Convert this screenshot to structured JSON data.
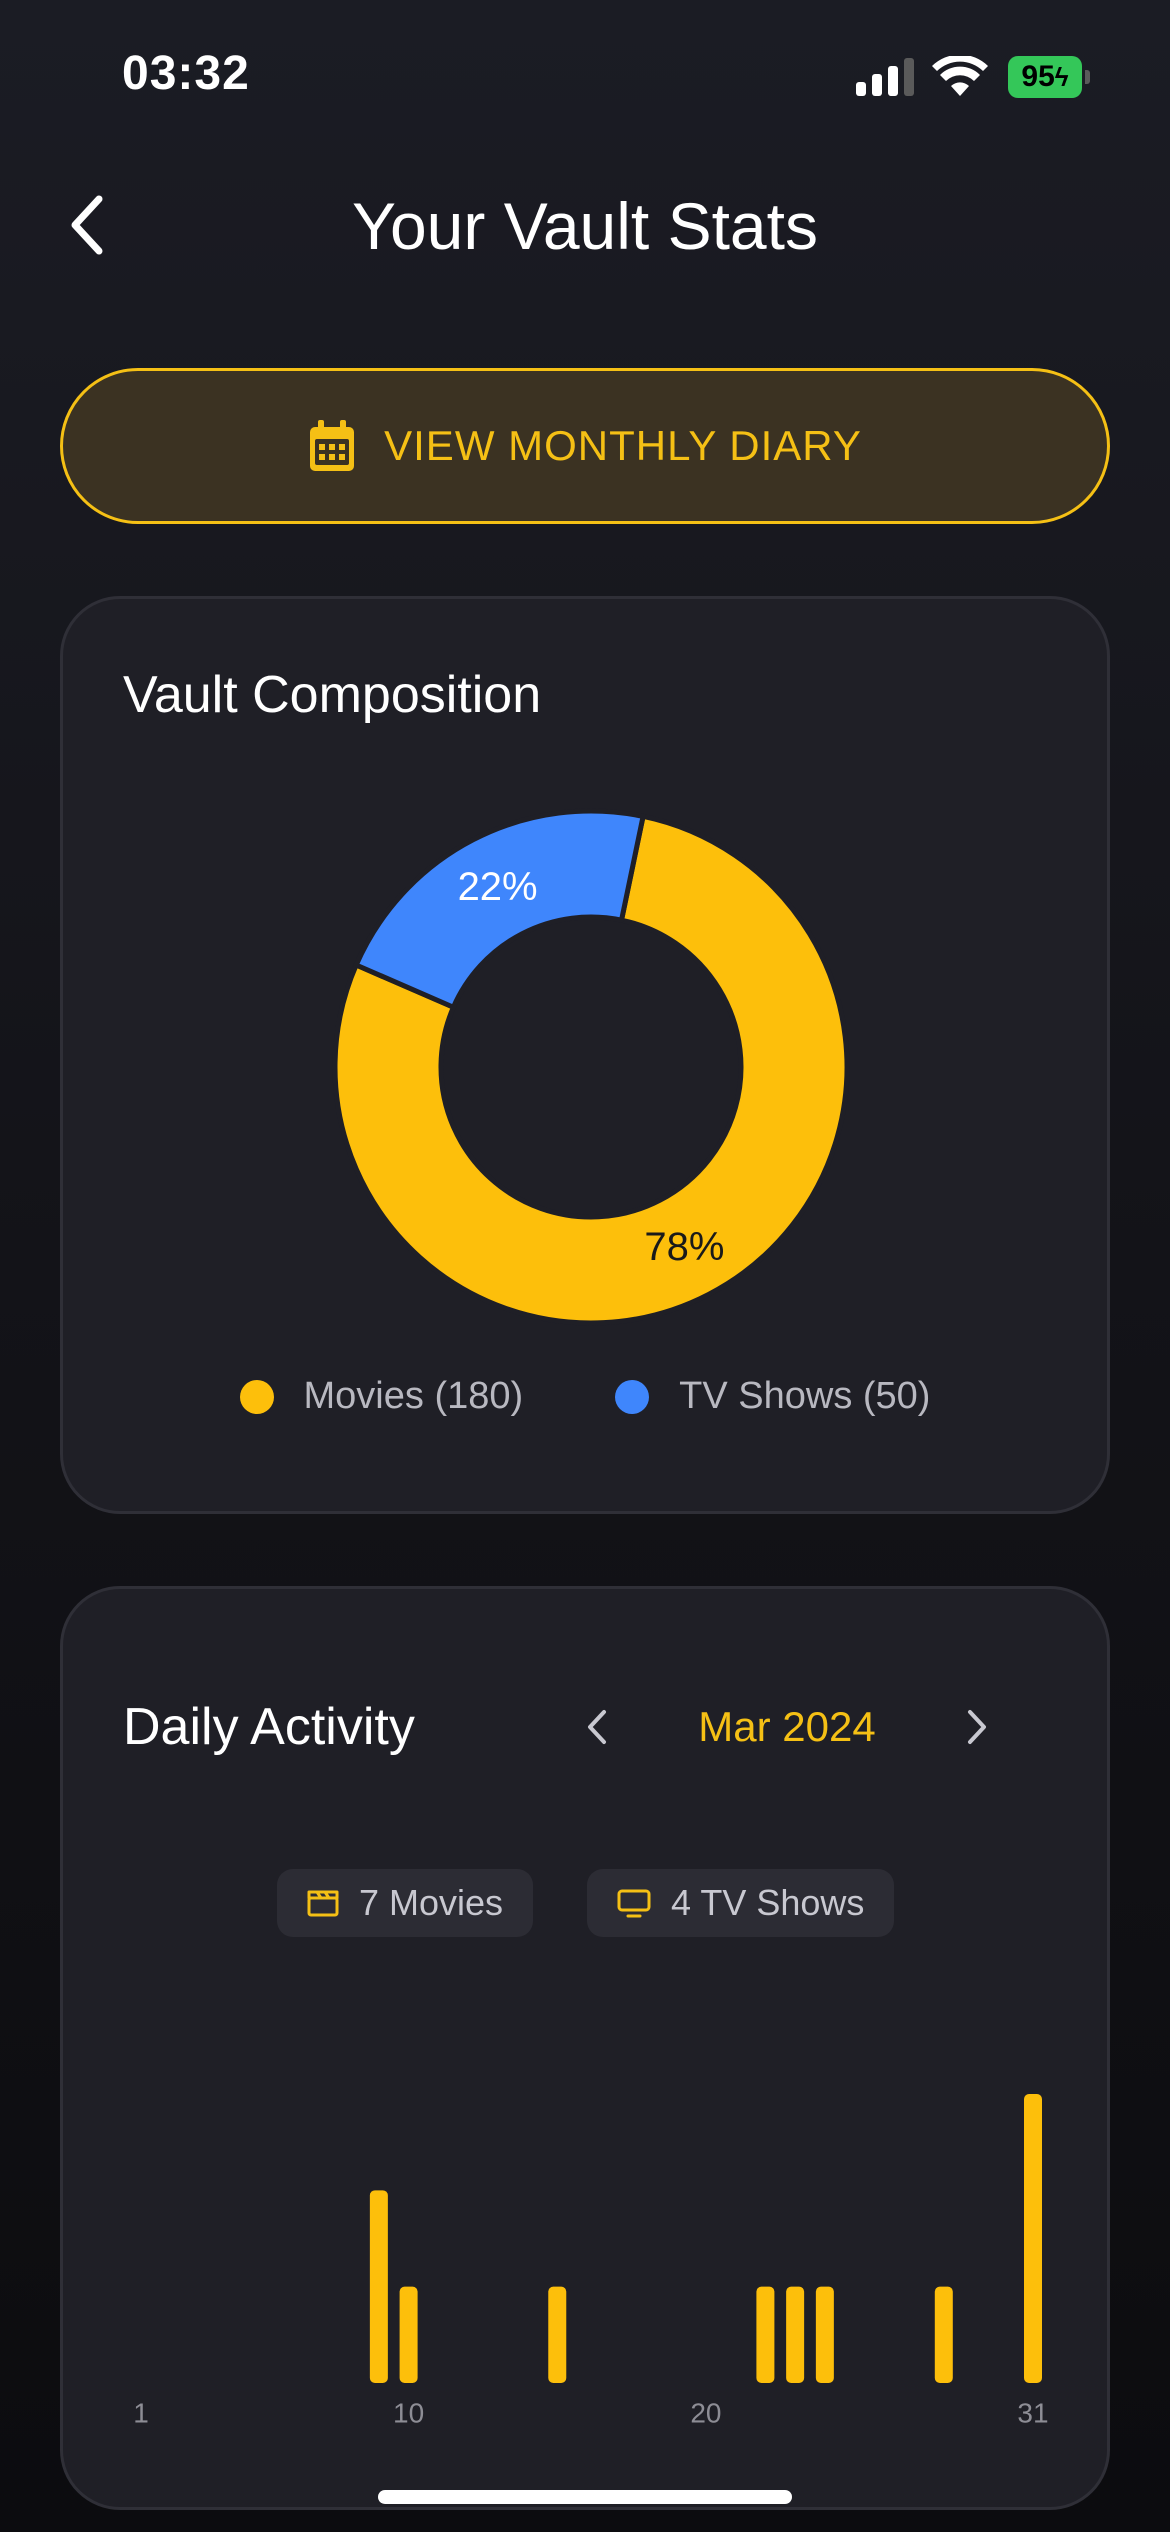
{
  "status_bar": {
    "time": "03:32",
    "battery": "95"
  },
  "header": {
    "title": "Your Vault Stats"
  },
  "diary_button": {
    "label": "VIEW MONTHLY DIARY"
  },
  "composition": {
    "title": "Vault Composition",
    "colors": {
      "movies": "#fdbf0b",
      "tv": "#3f86fc"
    },
    "legend": [
      {
        "label": "Movies (180)",
        "color": "#fdbf0b"
      },
      {
        "label": "TV Shows (50)",
        "color": "#3f86fc"
      }
    ]
  },
  "activity": {
    "title": "Daily Activity",
    "month": "Mar 2024",
    "movies_pill": "7 Movies",
    "tv_pill": "4 TV Shows"
  },
  "chart_data": [
    {
      "type": "pie",
      "style": "donut",
      "categories": [
        "Movies",
        "TV Shows"
      ],
      "values": [
        180,
        50
      ],
      "data_labels": [
        "78%",
        "22%"
      ],
      "colors": [
        "#fdbf0b",
        "#3f86fc"
      ]
    },
    {
      "type": "bar",
      "x": [
        9,
        10,
        15,
        22,
        23,
        24,
        28,
        31
      ],
      "values": [
        2,
        1,
        1,
        1,
        1,
        1,
        1,
        3
      ],
      "x_ticks": [
        "1",
        "10",
        "20",
        "31"
      ],
      "x_tick_values": [
        1,
        10,
        20,
        31
      ],
      "xlim": [
        1,
        31
      ],
      "ylim": [
        0,
        3
      ],
      "color": "#fdbf0b",
      "grid": false
    }
  ]
}
